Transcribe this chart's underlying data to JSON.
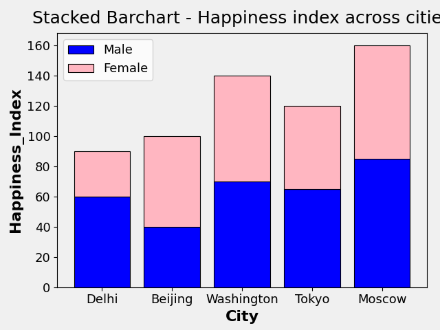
{
  "title": "Stacked Barchart - Happiness index across cities",
  "xlabel": "City",
  "ylabel": "Happiness_Index",
  "categories": [
    "Delhi",
    "Beijing",
    "Washington",
    "Tokyo",
    "Moscow"
  ],
  "male_values": [
    60,
    40,
    70,
    65,
    85
  ],
  "female_values": [
    30,
    60,
    70,
    55,
    75
  ],
  "male_color": "blue",
  "female_color": "lightpink",
  "male_label": "Male",
  "female_label": "Female",
  "ylim": [
    0,
    168
  ],
  "title_fontsize": 18,
  "label_fontsize": 16,
  "tick_fontsize": 13,
  "legend_fontsize": 13,
  "bar_edgecolor": "black",
  "bar_linewidth": 0.8,
  "figsize": [
    6.4,
    4.8
  ],
  "dpi": 100,
  "bg_color": "#f0f0f0"
}
